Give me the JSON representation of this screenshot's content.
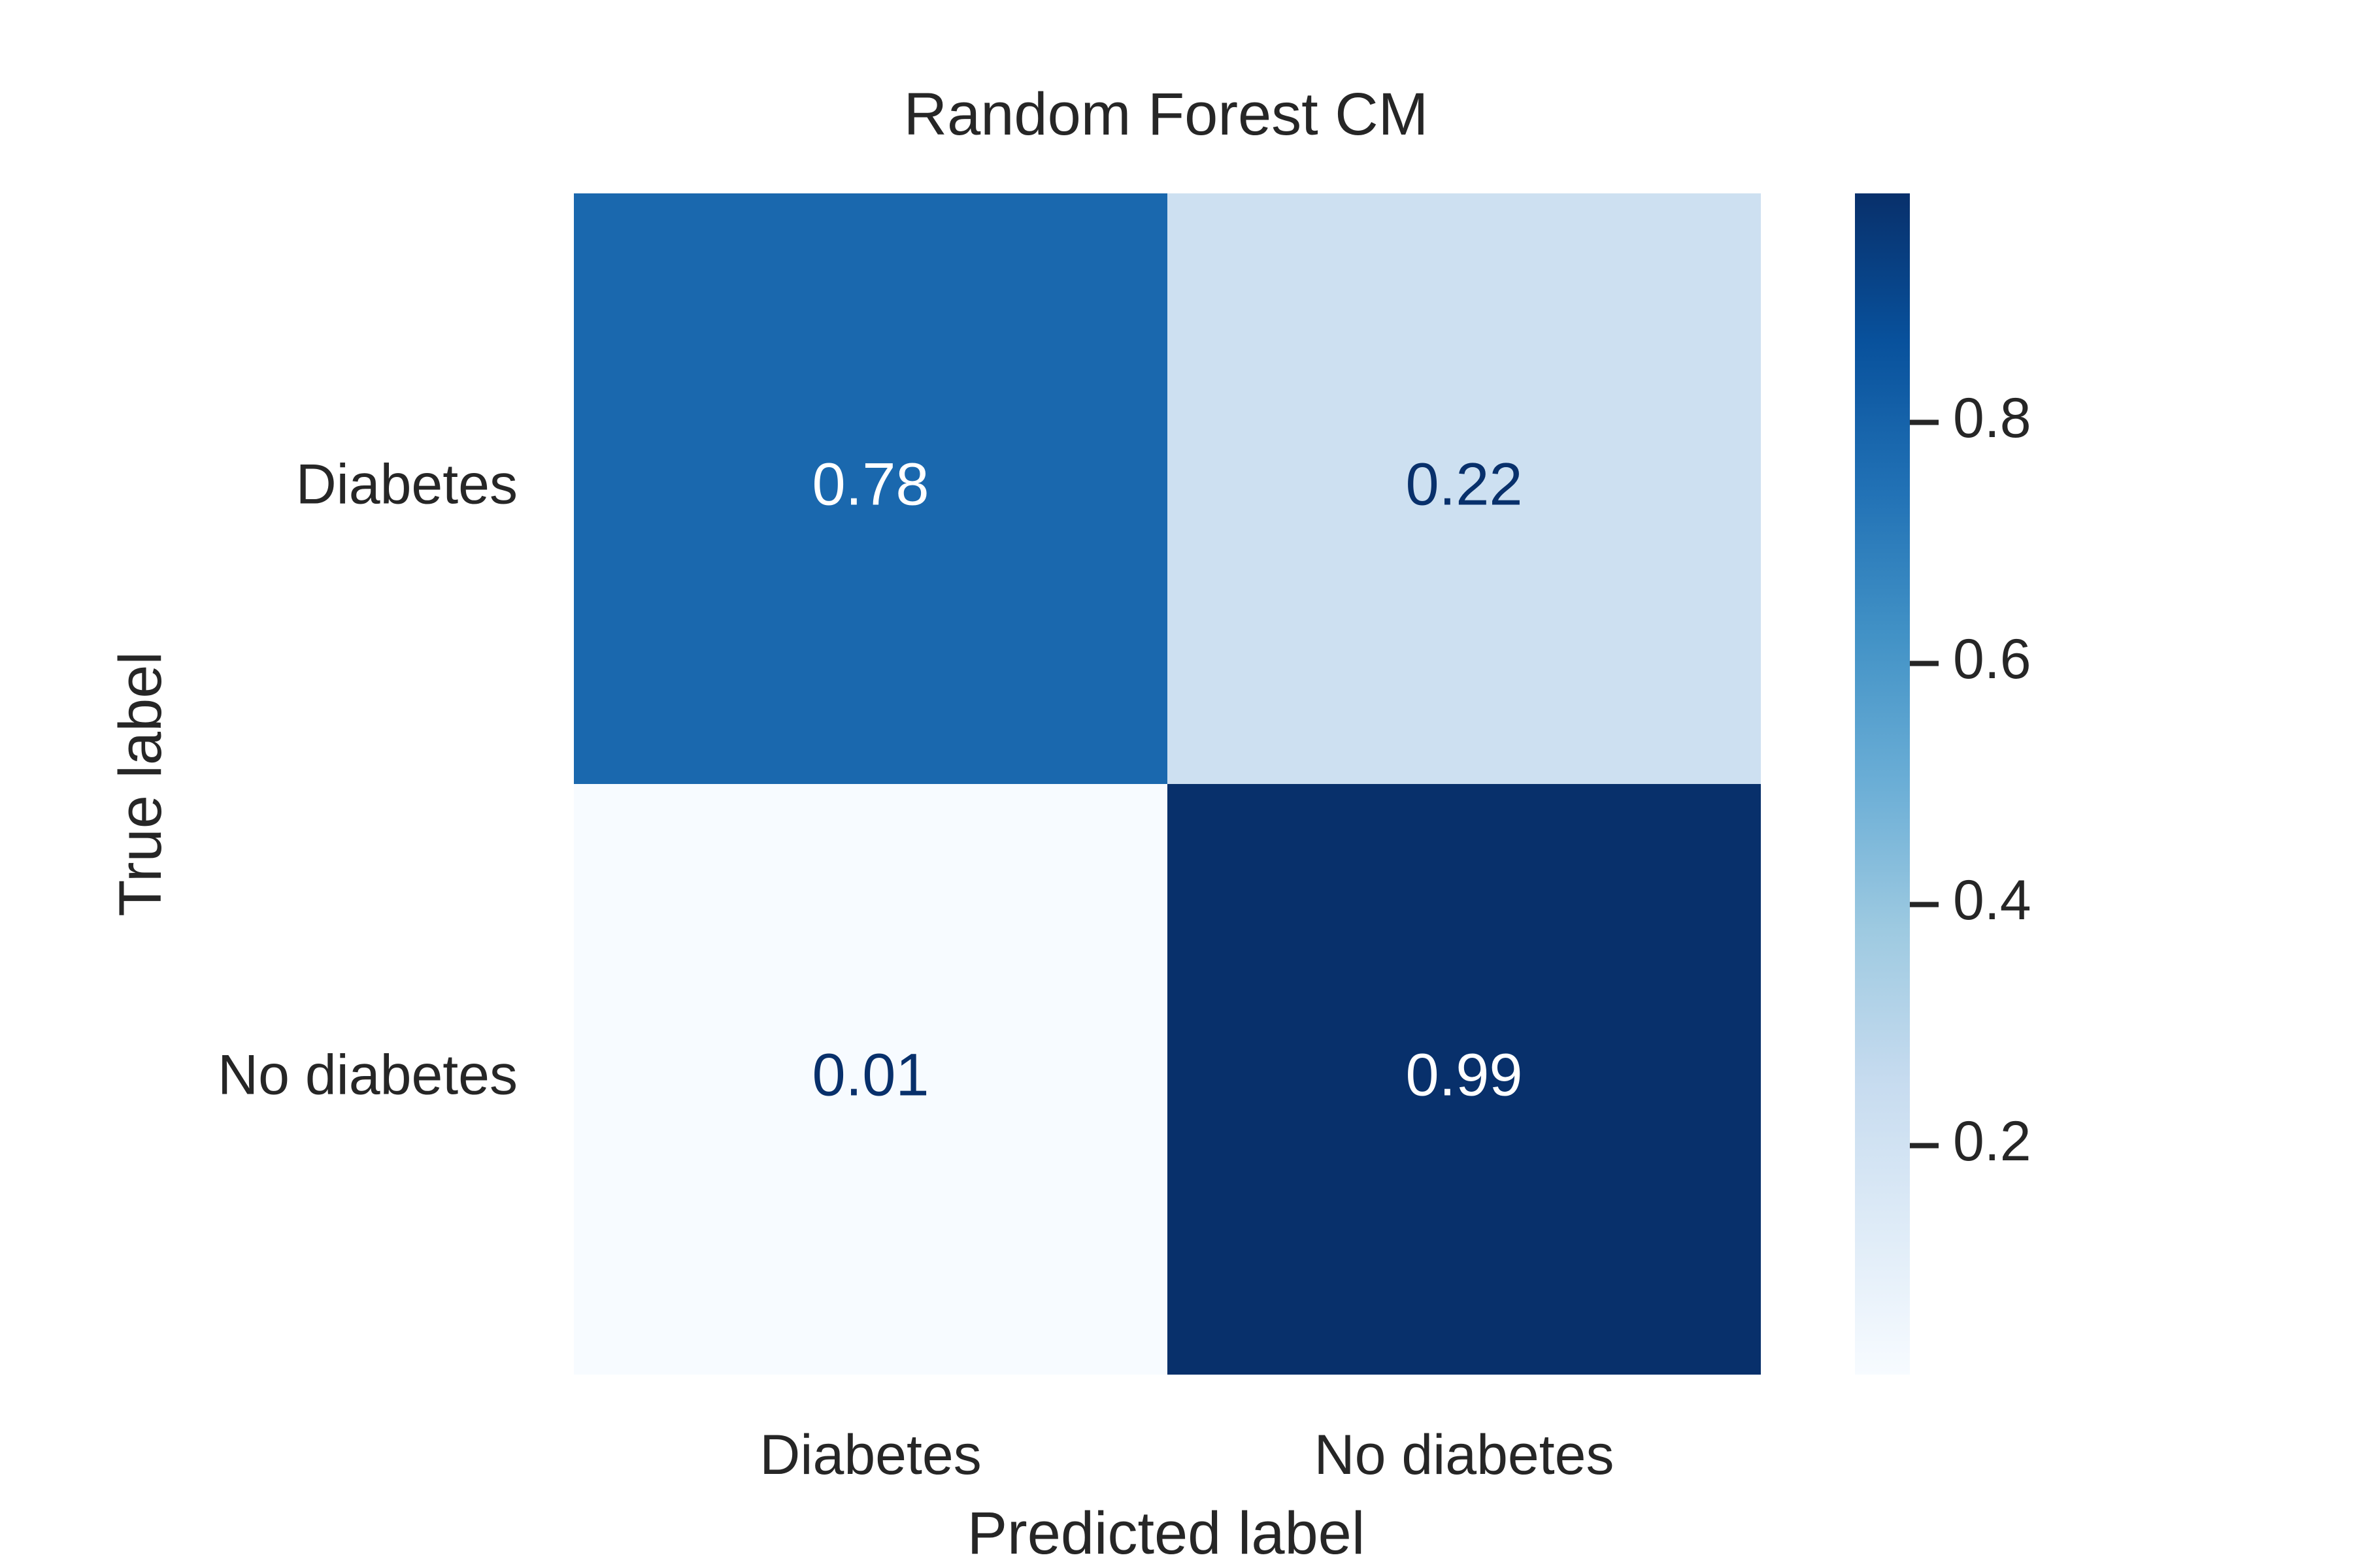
{
  "chart_data": {
    "type": "heatmap",
    "title": "Random Forest CM",
    "xlabel": "Predicted label",
    "ylabel": "True label",
    "x_categories": [
      "Diabetes",
      "No diabetes"
    ],
    "y_categories": [
      "Diabetes",
      "No diabetes"
    ],
    "values": [
      [
        0.78,
        0.22
      ],
      [
        0.01,
        0.99
      ]
    ],
    "value_labels": [
      [
        "0.78",
        "0.22"
      ],
      [
        "0.01",
        "0.99"
      ]
    ],
    "colormap": "Blues",
    "colorbar": {
      "range": [
        0.01,
        0.99
      ],
      "ticks": [
        0.2,
        0.4,
        0.6,
        0.8
      ],
      "tick_labels": [
        "0.2",
        "0.4",
        "0.6",
        "0.8"
      ]
    },
    "grid": false
  }
}
